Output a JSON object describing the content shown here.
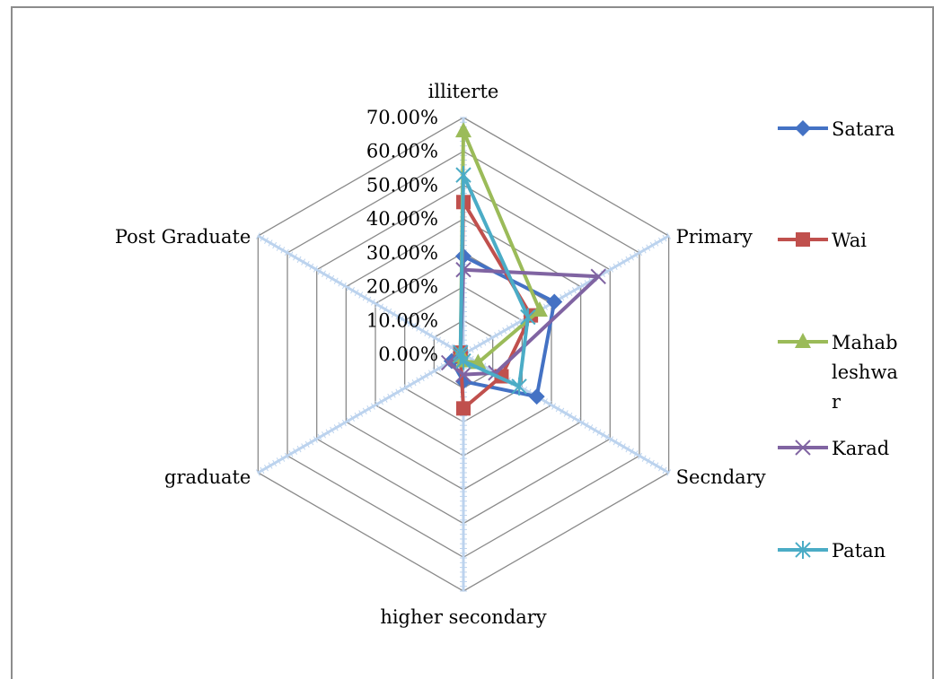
{
  "chart_data": {
    "type": "radar",
    "categories": [
      "illiterte",
      "Primary",
      "Secndary",
      "higher secondary",
      "graduate",
      "Post Graduate"
    ],
    "axis_ticks": [
      "0.00%",
      "10.00%",
      "20.00%",
      "30.00%",
      "40.00%",
      "50.00%",
      "60.00%",
      "70.00%"
    ],
    "range": [
      0,
      0.7
    ],
    "legend_position": "right",
    "series": [
      {
        "name": "Satara",
        "values": [
          0.29,
          0.31,
          0.25,
          0.08,
          0.04,
          0.01
        ],
        "color": "#4472c4",
        "marker": "diamond"
      },
      {
        "name": "Wai",
        "values": [
          0.45,
          0.23,
          0.13,
          0.16,
          0.01,
          0.01
        ],
        "color": "#c0504d",
        "marker": "square"
      },
      {
        "name": "Mahab leshwa r",
        "values": [
          0.66,
          0.26,
          0.05,
          0.02,
          0.01,
          0.01
        ],
        "color": "#9bbb59",
        "marker": "triangle"
      },
      {
        "name": "Karad",
        "values": [
          0.25,
          0.46,
          0.11,
          0.06,
          0.05,
          0.01
        ],
        "color": "#8064a2",
        "marker": "x"
      },
      {
        "name": "Patan",
        "values": [
          0.53,
          0.22,
          0.19,
          0.02,
          0.01,
          0.01
        ],
        "color": "#4bacc6",
        "marker": "star"
      }
    ]
  },
  "legend": {
    "items": [
      {
        "lines": [
          "Satara"
        ]
      },
      {
        "lines": [
          "Wai"
        ]
      },
      {
        "lines": [
          "Mahab",
          "leshwa",
          "r"
        ]
      },
      {
        "lines": [
          "Karad"
        ]
      },
      {
        "lines": [
          "Patan"
        ]
      }
    ]
  }
}
